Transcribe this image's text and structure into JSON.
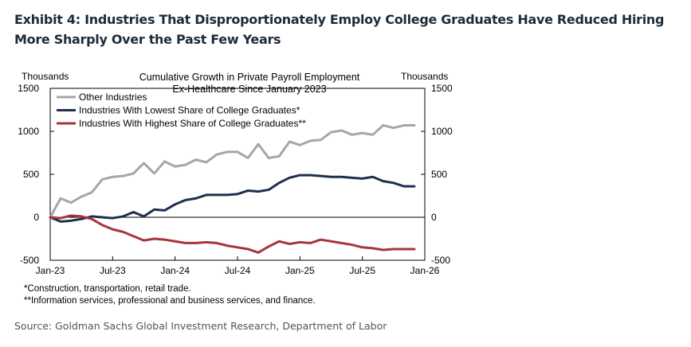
{
  "header": {
    "title": "Exhibit 4: Industries That Disproportionately Employ College Graduates Have Reduced Hiring More Sharply Over the Past Few Years"
  },
  "chart_data": {
    "type": "line",
    "title_lines": [
      "Cumulative  Growth  in Private Payroll Employment",
      "Ex-Healthcare  Since January  2023"
    ],
    "left_axis_label": "Thousands",
    "right_axis_label": "Thousands",
    "ylim": [
      -500,
      1500
    ],
    "yticks": [
      -500,
      0,
      500,
      1000,
      1500
    ],
    "ytick_labels": [
      "-500",
      "0",
      "500",
      "1000",
      "1500"
    ],
    "xlim": [
      0,
      36
    ],
    "xticks": [
      0,
      6,
      12,
      18,
      24,
      30,
      36
    ],
    "xtick_labels": [
      "Jan-23",
      "Jul-23",
      "Jan-24",
      "Jul-24",
      "Jan-25",
      "Jul-25",
      "Jan-26"
    ],
    "x_unit": "months since Jan-23",
    "legend_position": "top-left",
    "series": [
      {
        "name": "Other Industries",
        "color": "#a6a6a6",
        "values": [
          0,
          220,
          170,
          240,
          290,
          440,
          470,
          480,
          510,
          630,
          510,
          650,
          590,
          610,
          670,
          640,
          730,
          760,
          760,
          690,
          850,
          690,
          710,
          880,
          840,
          890,
          900,
          990,
          1010,
          960,
          980,
          960,
          1070,
          1040,
          1070,
          1070
        ]
      },
      {
        "name": "Industries With Lowest Share of College Graduates*",
        "color": "#1f2f4f",
        "values": [
          0,
          -50,
          -40,
          -20,
          10,
          0,
          -10,
          10,
          60,
          10,
          90,
          80,
          150,
          200,
          220,
          260,
          260,
          260,
          270,
          310,
          300,
          320,
          400,
          460,
          490,
          490,
          480,
          470,
          470,
          460,
          450,
          470,
          420,
          400,
          360,
          360
        ]
      },
      {
        "name": "Industries With Highest Share of College Graduates**",
        "color": "#a8353a",
        "values": [
          0,
          -10,
          20,
          10,
          -20,
          -90,
          -140,
          -170,
          -220,
          -270,
          -250,
          -260,
          -280,
          -300,
          -300,
          -290,
          -300,
          -330,
          -350,
          -370,
          -410,
          -340,
          -280,
          -310,
          -290,
          -300,
          -260,
          -280,
          -300,
          -320,
          -350,
          -360,
          -380,
          -370,
          -370,
          -370
        ]
      }
    ],
    "footnotes": [
      "*Construction, transportation, retail trade.",
      "**Information services, professional and business services, and finance."
    ]
  },
  "source": "Source: Goldman Sachs Global Investment Research, Department of Labor"
}
